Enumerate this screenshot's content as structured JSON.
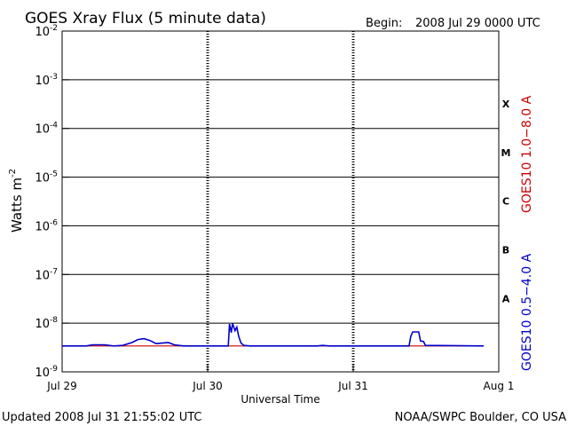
{
  "header": {
    "title": "GOES Xray Flux (5 minute data)",
    "begin_label": "Begin:",
    "begin_value": "2008 Jul 29 0000 UTC"
  },
  "footer": {
    "updated": "Updated 2008 Jul 31 21:55:02 UTC",
    "credit": "NOAA/SWPC Boulder, CO USA"
  },
  "chart_data": {
    "type": "line",
    "title": "GOES Xray Flux (5 minute data)",
    "xlabel": "Universal Time",
    "ylabel": "Watts m",
    "ylabel_sup": "-2",
    "y_scale": "log",
    "ylim": [
      1e-09,
      0.01
    ],
    "xlim_hours": [
      0,
      72
    ],
    "x_tick_labels": [
      "Jul 29",
      "Jul 30",
      "Jul 31",
      "Aug 1"
    ],
    "x_tick_hours": [
      0,
      24,
      48,
      72
    ],
    "y_ticks": [
      {
        "base": "10",
        "exp": "-9",
        "value": 1e-09
      },
      {
        "base": "10",
        "exp": "-8",
        "value": 1e-08
      },
      {
        "base": "10",
        "exp": "-7",
        "value": 1e-07
      },
      {
        "base": "10",
        "exp": "-6",
        "value": 1e-06
      },
      {
        "base": "10",
        "exp": "-5",
        "value": 1e-05
      },
      {
        "base": "10",
        "exp": "-4",
        "value": 0.0001
      },
      {
        "base": "10",
        "exp": "-3",
        "value": 0.001
      },
      {
        "base": "10",
        "exp": "-2",
        "value": 0.01
      }
    ],
    "gridlines_y": [
      1e-08,
      1e-07,
      1e-06,
      1e-05,
      0.0001,
      0.001
    ],
    "flare_classes": [
      {
        "label": "A",
        "value": 3.2e-08
      },
      {
        "label": "B",
        "value": 3.2e-07
      },
      {
        "label": "C",
        "value": 3.2e-06
      },
      {
        "label": "M",
        "value": 3.2e-05
      },
      {
        "label": "X",
        "value": 0.00032
      }
    ],
    "series": [
      {
        "name": "GOES10 1.0−8.0 A",
        "color": "#cc0000",
        "points": [
          [
            0,
            3.4e-09
          ],
          [
            69.5,
            3.4e-09
          ]
        ]
      },
      {
        "name": "GOES10 0.5−4.0 A",
        "color": "#0000cc",
        "points": [
          [
            0,
            3.4e-09
          ],
          [
            4,
            3.4e-09
          ],
          [
            5,
            3.6e-09
          ],
          [
            7,
            3.6e-09
          ],
          [
            8.5,
            3.4e-09
          ],
          [
            10,
            3.5e-09
          ],
          [
            11.5,
            4e-09
          ],
          [
            12.5,
            4.6e-09
          ],
          [
            13.5,
            4.8e-09
          ],
          [
            14.5,
            4.4e-09
          ],
          [
            15.5,
            3.8e-09
          ],
          [
            16.5,
            3.9e-09
          ],
          [
            17.5,
            4e-09
          ],
          [
            18.5,
            3.6e-09
          ],
          [
            20,
            3.4e-09
          ],
          [
            24,
            3.4e-09
          ],
          [
            27.4,
            3.4e-09
          ],
          [
            27.6,
            9.6e-09
          ],
          [
            27.9,
            6.4e-09
          ],
          [
            28.1,
            9.9e-09
          ],
          [
            28.5,
            7e-09
          ],
          [
            28.8,
            8.3e-09
          ],
          [
            29.1,
            5.4e-09
          ],
          [
            29.5,
            3.9e-09
          ],
          [
            30,
            3.5e-09
          ],
          [
            31,
            3.4e-09
          ],
          [
            42,
            3.4e-09
          ],
          [
            43,
            3.5e-09
          ],
          [
            44,
            3.4e-09
          ],
          [
            48,
            3.4e-09
          ],
          [
            57.2,
            3.4e-09
          ],
          [
            57.5,
            5.4e-09
          ],
          [
            57.8,
            6.6e-09
          ],
          [
            58.8,
            6.6e-09
          ],
          [
            59.1,
            4.3e-09
          ],
          [
            59.6,
            4.2e-09
          ],
          [
            59.9,
            3.5e-09
          ],
          [
            69.5,
            3.4e-09
          ]
        ]
      }
    ]
  }
}
